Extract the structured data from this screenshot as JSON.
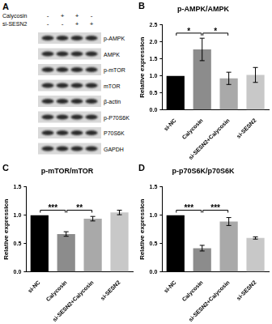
{
  "blot": {
    "panel": "A",
    "conditions": [
      {
        "name": "Calycosin",
        "signs": [
          "-",
          "+",
          "+",
          "-"
        ]
      },
      {
        "name": "si-SESN2",
        "signs": [
          "-",
          "-",
          "+",
          "+"
        ]
      }
    ],
    "bands": [
      "p-AMPK",
      "AMPK",
      "p-mTOR",
      "mTOR",
      "β-actin",
      "p-P70S6K",
      "P70S6K",
      "GAPDH"
    ]
  },
  "chart_data": [
    {
      "type": "bar",
      "title": "p-AMPK/AMPK",
      "y_label": "Relative expression",
      "categories": [
        "si-NC",
        "Calycosin",
        "si-SESN2+Calycosin",
        "si-SESN2"
      ],
      "values": [
        1.0,
        1.78,
        0.93,
        1.03
      ],
      "errors": [
        0,
        0.33,
        0.18,
        0.22
      ],
      "colors": [
        "#000000",
        "#8c8c8c",
        "#a9a9a9",
        "#c8c8c8"
      ],
      "ylim": [
        0,
        2.5
      ],
      "yticks": [
        {
          "value": 0,
          "label": "0.0"
        },
        0.5,
        {
          "value": 1,
          "label": "1.0"
        },
        1.5,
        {
          "value": 2,
          "label": "2.0"
        },
        2.5
      ],
      "grid": false,
      "annotations": [
        {
          "text": "B"
        },
        {
          "text": "*",
          "between": [
            "si-NC",
            "Calycosin"
          ]
        },
        {
          "text": "*",
          "between": [
            "Calycosin",
            "si-SESN2+Calycosin"
          ]
        }
      ]
    },
    {
      "type": "bar",
      "title": "p-mTOR/mTOR",
      "y_label": "Relative expression",
      "categories": [
        "si-NC",
        "Calycosin",
        "si-SESN2+Calycosin",
        "si-SESN2"
      ],
      "values": [
        1.0,
        0.67,
        0.94,
        1.05
      ],
      "errors": [
        0,
        0.04,
        0.04,
        0.04
      ],
      "colors": [
        "#000000",
        "#8c8c8c",
        "#a9a9a9",
        "#c8c8c8"
      ],
      "ylim": [
        0,
        1.5
      ],
      "yticks": [
        {
          "value": 0,
          "label": "0.0"
        },
        0.5,
        {
          "value": 1,
          "label": "1.0"
        },
        1.5
      ],
      "grid": false,
      "annotations": [
        {
          "text": "C"
        },
        {
          "text": "***",
          "between": [
            "si-NC",
            "Calycosin"
          ]
        },
        {
          "text": "**",
          "between": [
            "Calycosin",
            "si-SESN2+Calycosin"
          ]
        }
      ]
    },
    {
      "type": "bar",
      "title": "p-p70S6K/p70S6K",
      "y_label": "Relative expression",
      "categories": [
        "si-NC",
        "Calycosin",
        "si-SESN2+Calycosin",
        "si-SESN2"
      ],
      "values": [
        1.0,
        0.42,
        0.89,
        0.6
      ],
      "errors": [
        0,
        0.05,
        0.07,
        0.02
      ],
      "colors": [
        "#000000",
        "#8c8c8c",
        "#a9a9a9",
        "#c8c8c8"
      ],
      "ylim": [
        0,
        1.5
      ],
      "yticks": [
        {
          "value": 0,
          "label": "0.0"
        },
        0.5,
        {
          "value": 1,
          "label": "1.0"
        },
        1.5
      ],
      "grid": false,
      "annotations": [
        {
          "text": "D"
        },
        {
          "text": "***",
          "between": [
            "si-NC",
            "Calycosin"
          ]
        },
        {
          "text": "***",
          "between": [
            "Calycosin",
            "si-SESN2+Calycosin"
          ]
        }
      ]
    }
  ]
}
